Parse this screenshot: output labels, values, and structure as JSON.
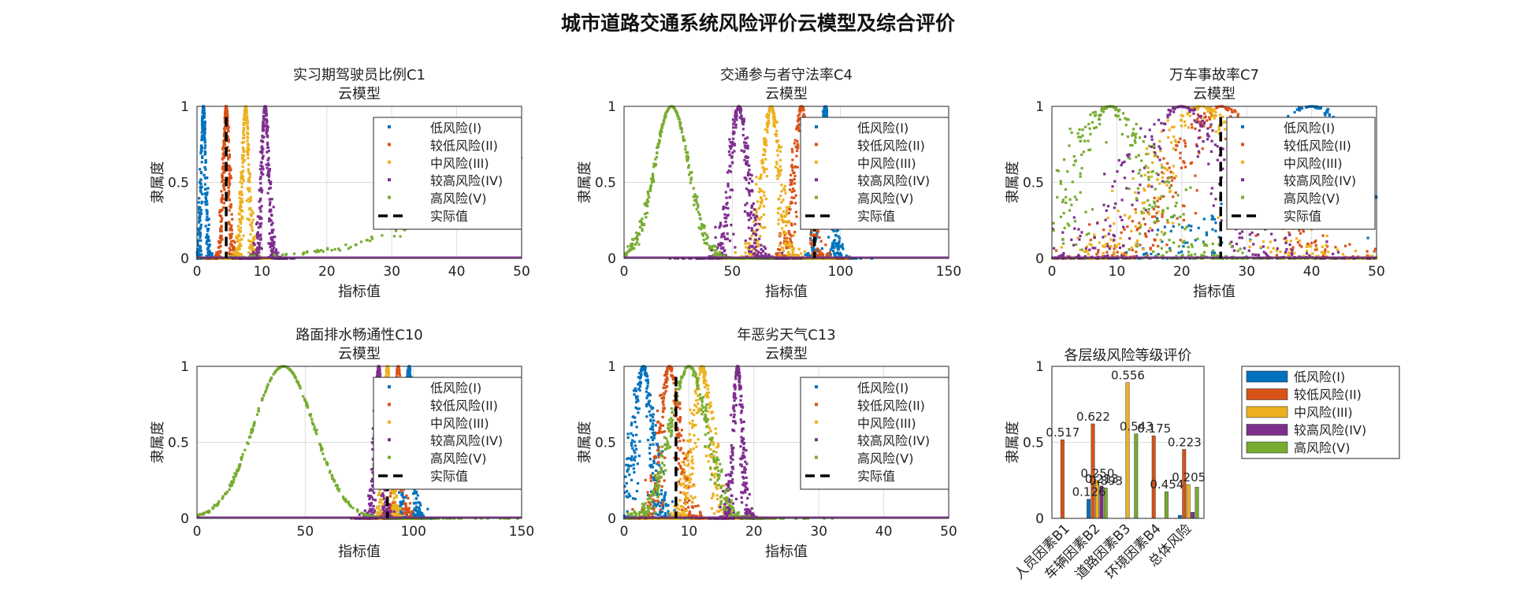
{
  "suptitle": "城市道路交通系统风险评价云模型及综合评价",
  "colors": {
    "I": "#0072BD",
    "II": "#D95319",
    "III": "#EDB120",
    "IV": "#7E2F8E",
    "V": "#77AC30",
    "actual": "#000000"
  },
  "legend_labels": [
    "低风险(I)",
    "较低风险(II)",
    "中风险(III)",
    "较高风险(IV)",
    "高风险(V)",
    "实际值"
  ],
  "chart_data": [
    {
      "type": "scatter",
      "title": "实习期驾驶员比例C1",
      "subtitle": "云模型",
      "xlabel": "指标值",
      "ylabel": "隶属度",
      "xlim": [
        0,
        50
      ],
      "ylim": [
        0,
        1
      ],
      "xticks": [
        "0",
        "10",
        "20",
        "30",
        "40",
        "50"
      ],
      "yticks": [
        "0",
        "0.5",
        "1"
      ],
      "grid": true,
      "legend_position": "top-right",
      "series": [
        {
          "name": "低风险(I)",
          "Ex": 1,
          "En": 0.3,
          "He": 0.1
        },
        {
          "name": "较低风险(II)",
          "Ex": 4.5,
          "En": 0.4,
          "He": 0.12
        },
        {
          "name": "中风险(III)",
          "Ex": 7.5,
          "En": 0.45,
          "He": 0.13
        },
        {
          "name": "较高风险(IV)",
          "Ex": 10.5,
          "En": 0.5,
          "He": 0.13
        },
        {
          "name": "高风险(V)",
          "Ex": 68,
          "En": 20,
          "He": 0.5
        }
      ],
      "actual": 4.5
    },
    {
      "type": "scatter",
      "title": "交通参与者守法率C4",
      "subtitle": "云模型",
      "xlabel": "指标值",
      "ylabel": "隶属度",
      "xlim": [
        0,
        150
      ],
      "ylim": [
        0,
        1
      ],
      "xticks": [
        "0",
        "50",
        "100",
        "150"
      ],
      "yticks": [
        "0",
        "0.5",
        "1"
      ],
      "grid": true,
      "legend_position": "top-right",
      "series": [
        {
          "name": "低风险(I)",
          "Ex": 93,
          "En": 2,
          "He": 0.8
        },
        {
          "name": "较低风险(II)",
          "Ex": 82,
          "En": 3,
          "He": 0.9
        },
        {
          "name": "中风险(III)",
          "Ex": 68,
          "En": 3.5,
          "He": 1
        },
        {
          "name": "较高风险(IV)",
          "Ex": 53,
          "En": 3.5,
          "He": 1
        },
        {
          "name": "高风险(V)",
          "Ex": 22,
          "En": 8,
          "He": 0.4
        }
      ],
      "actual": 88
    },
    {
      "type": "scatter",
      "title": "万车事故率C7",
      "subtitle": "云模型",
      "xlabel": "指标值",
      "ylabel": "隶属度",
      "xlim": [
        0,
        50
      ],
      "ylim": [
        0,
        1
      ],
      "xticks": [
        "0",
        "10",
        "20",
        "30",
        "40",
        "50"
      ],
      "yticks": [
        "0",
        "0.5",
        "1"
      ],
      "grid": true,
      "legend_position": "top-right",
      "series": [
        {
          "name": "低风险(I)",
          "Ex": 40,
          "En": 8,
          "He": 2.5
        },
        {
          "name": "较低风险(II)",
          "Ex": 26,
          "En": 6,
          "He": 2
        },
        {
          "name": "中风险(III)",
          "Ex": 23,
          "En": 6,
          "He": 2
        },
        {
          "name": "较高风险(IV)",
          "Ex": 20,
          "En": 6,
          "He": 2
        },
        {
          "name": "高风险(V)",
          "Ex": 9,
          "En": 5,
          "He": 1.8
        }
      ],
      "actual": 26
    },
    {
      "type": "scatter",
      "title": "路面排水畅通性C10",
      "subtitle": "云模型",
      "xlabel": "指标值",
      "ylabel": "隶属度",
      "xlim": [
        0,
        150
      ],
      "ylim": [
        0,
        1
      ],
      "xticks": [
        "0",
        "50",
        "100",
        "150"
      ],
      "yticks": [
        "0",
        "0.5",
        "1"
      ],
      "grid": true,
      "legend_position": "top-right",
      "series": [
        {
          "name": "低风险(I)",
          "Ex": 98,
          "En": 1.5,
          "He": 0.5
        },
        {
          "name": "较低风险(II)",
          "Ex": 93,
          "En": 1.5,
          "He": 0.5
        },
        {
          "name": "中风险(III)",
          "Ex": 88,
          "En": 1.5,
          "He": 0.5
        },
        {
          "name": "较高风险(IV)",
          "Ex": 84,
          "En": 1.5,
          "He": 0.5
        },
        {
          "name": "高风险(V)",
          "Ex": 40,
          "En": 14,
          "He": 0.2
        }
      ],
      "actual": 88
    },
    {
      "type": "scatter",
      "title": "年恶劣天气C13",
      "subtitle": "云模型",
      "xlabel": "指标值",
      "ylabel": "隶属度",
      "xlim": [
        0,
        50
      ],
      "ylim": [
        0,
        1
      ],
      "xticks": [
        "0",
        "10",
        "20",
        "30",
        "40",
        "50"
      ],
      "yticks": [
        "0",
        "0.5",
        "1"
      ],
      "grid": true,
      "legend_position": "top-right",
      "series": [
        {
          "name": "低风险(I)",
          "Ex": 3,
          "En": 1.2,
          "He": 0.4
        },
        {
          "name": "较低风险(II)",
          "Ex": 7,
          "En": 1.2,
          "He": 0.4
        },
        {
          "name": "中风险(III)",
          "Ex": 12,
          "En": 1.2,
          "He": 0.4
        },
        {
          "name": "较高风险(IV)",
          "Ex": 17.5,
          "En": 0.6,
          "He": 0.2
        },
        {
          "name": "高风险(V)",
          "Ex": 10,
          "En": 2.8,
          "He": 0.3
        }
      ],
      "actual": 8
    },
    {
      "type": "bar",
      "title": "各层级风险等级评价",
      "ylabel": "隶属度",
      "ylim": [
        0,
        1
      ],
      "yticks": [
        "0",
        "0.5",
        "1"
      ],
      "categories": [
        "人员因素B1",
        "车辆因素B2",
        "道路因素B3",
        "环境因素B4",
        "总体风险"
      ],
      "legend_position": "outside-right",
      "series": [
        {
          "name": "低风险(I)",
          "values": [
            0,
            0.126,
            0,
            0,
            0.02
          ]
        },
        {
          "name": "较低风险(II)",
          "values": [
            0.517,
            0.622,
            0,
            0.543,
            0.454
          ]
        },
        {
          "name": "中风险(III)",
          "values": [
            0,
            0.25,
            0.893,
            0,
            0.223
          ]
        },
        {
          "name": "较高风险(IV)",
          "values": [
            0,
            0.213,
            0,
            0,
            0.04
          ]
        },
        {
          "name": "高风险(V)",
          "values": [
            0,
            0.2,
            0.556,
            0.175,
            0.205
          ]
        }
      ],
      "value_labels": [
        "0.517",
        "0.126",
        "0.622",
        "0.250",
        "0.213",
        "0.893",
        "0.556",
        "0.543",
        "0.175",
        "0.454",
        "0.223",
        "0.205"
      ]
    }
  ]
}
